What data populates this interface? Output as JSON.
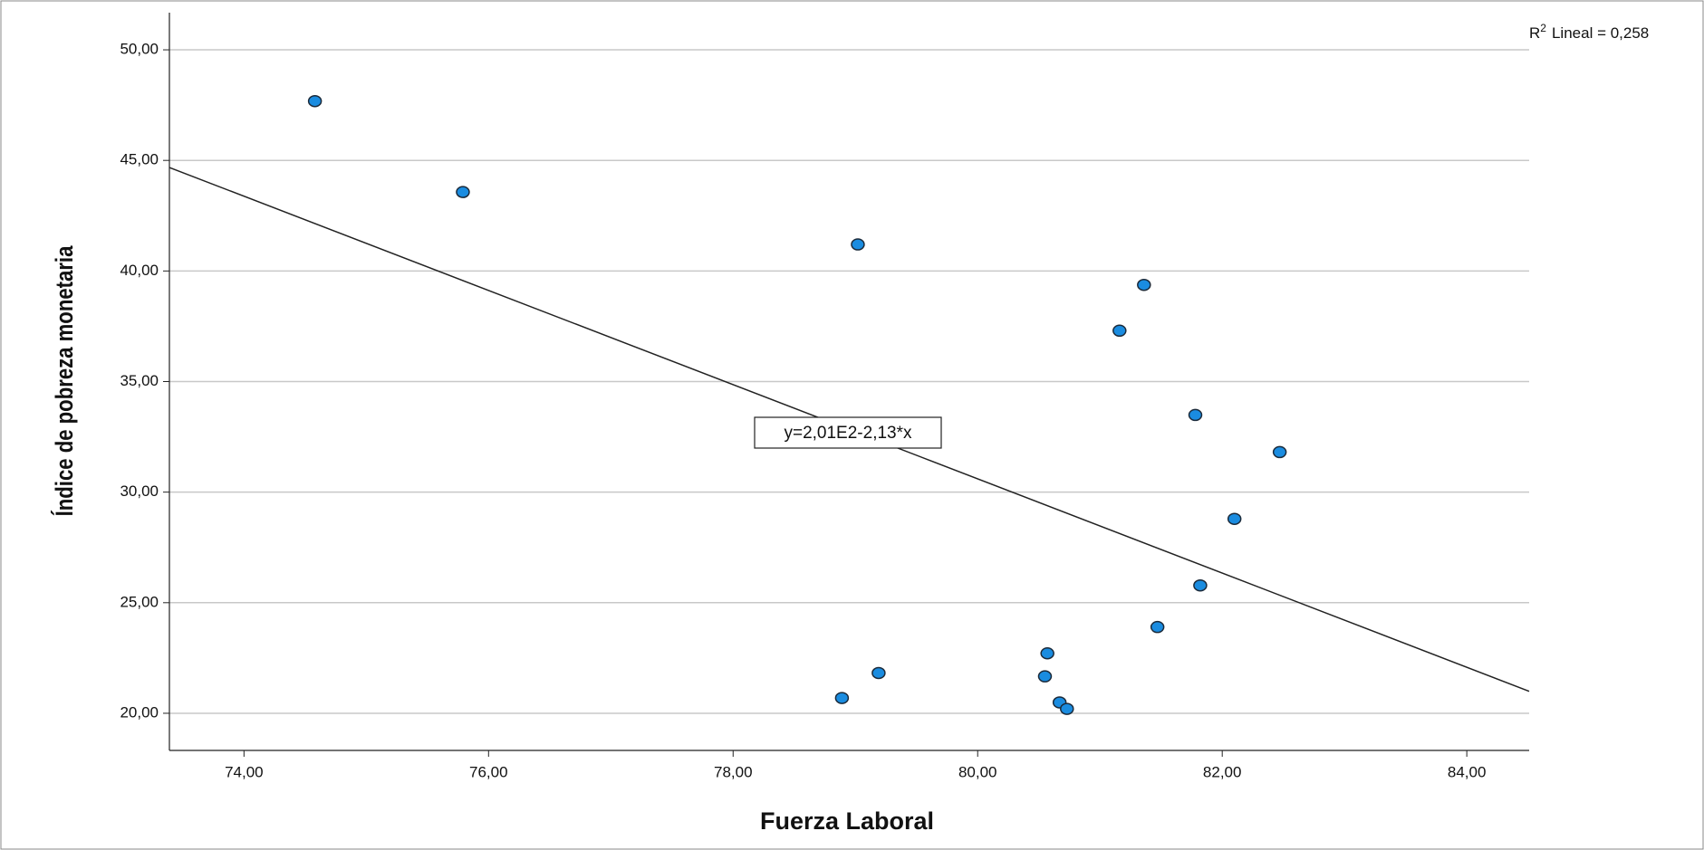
{
  "chart_data": {
    "type": "scatter",
    "x_label": "Fuerza Laboral",
    "y_label": "Índice de pobreza monetaria",
    "x": [
      74.58,
      75.79,
      79.02,
      81.36,
      81.16,
      81.78,
      82.47,
      82.1,
      81.82,
      81.47,
      80.57,
      80.55,
      79.19,
      78.89,
      80.67,
      80.73
    ],
    "values": [
      47.68,
      43.57,
      41.2,
      39.37,
      37.3,
      33.49,
      31.81,
      28.79,
      25.78,
      23.9,
      22.71,
      21.67,
      21.82,
      20.69,
      20.49,
      20.2
    ],
    "color": "#1a8ce0",
    "xlim": [
      73.39,
      84.51
    ],
    "ylim": [
      18.32,
      51.68
    ],
    "xticks": [
      {
        "value": 74,
        "label": "74,00"
      },
      {
        "value": 76,
        "label": "76,00"
      },
      {
        "value": 78,
        "label": "78,00"
      },
      {
        "value": 80,
        "label": "80,00"
      },
      {
        "value": 82,
        "label": "82,00"
      },
      {
        "value": 84,
        "label": "84,00"
      }
    ],
    "yticks": [
      {
        "value": 20,
        "label": "20,00"
      },
      {
        "value": 25,
        "label": "25,00"
      },
      {
        "value": 30,
        "label": "30,00"
      },
      {
        "value": 35,
        "label": "35,00"
      },
      {
        "value": 40,
        "label": "40,00"
      },
      {
        "value": 45,
        "label": "45,00"
      },
      {
        "value": 50,
        "label": "50,00"
      }
    ],
    "grid": true,
    "fit_line": {
      "label": "y=2,01E2-2,13*x",
      "intercept": 201,
      "slope": -2.13
    },
    "r2_annotation": {
      "symbol": "R",
      "superscript": "2",
      "text": "Lineal = 0,258"
    }
  }
}
